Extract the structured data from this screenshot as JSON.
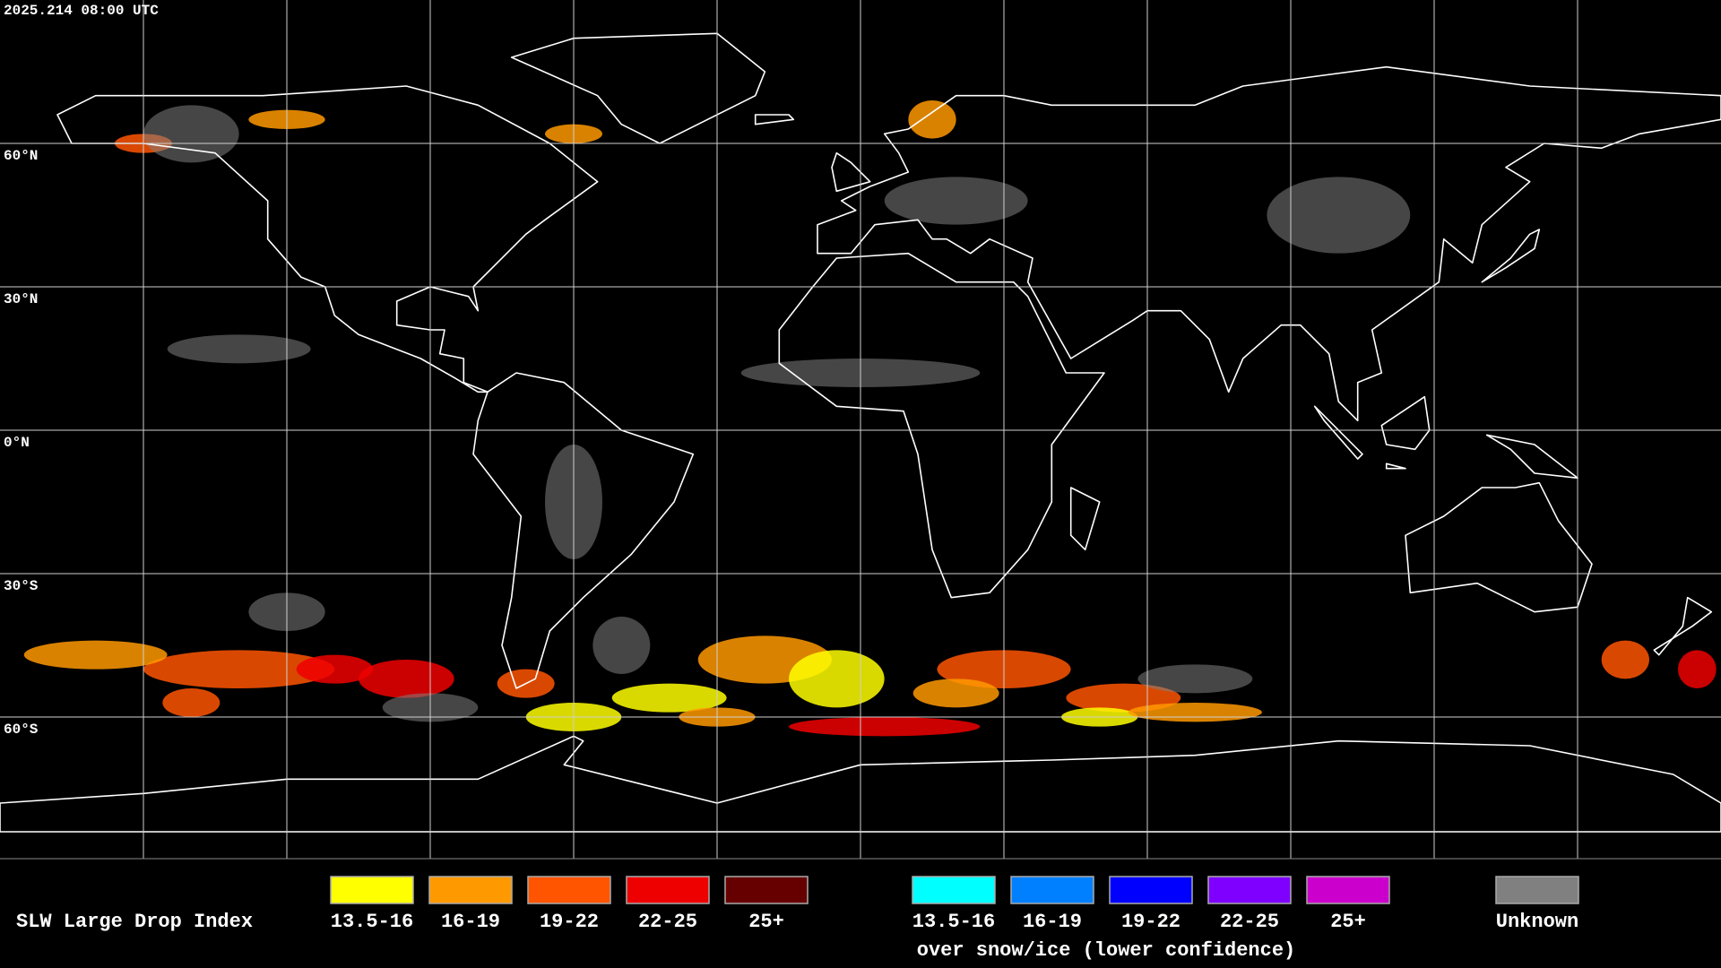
{
  "timestamp": "2025.214 08:00 UTC",
  "latitude_labels": [
    "60°N",
    "30°N",
    "0°N",
    "30°S",
    "60°S"
  ],
  "legend": {
    "title": "SLW Large Drop Index",
    "items": [
      {
        "label": "13.5-16",
        "color": "#ffff00"
      },
      {
        "label": "16-19",
        "color": "#ff9900"
      },
      {
        "label": "19-22",
        "color": "#ff5500"
      },
      {
        "label": "22-25",
        "color": "#ee0000"
      },
      {
        "label": "25+",
        "color": "#660000"
      }
    ],
    "snow_items": [
      {
        "label": "13.5-16",
        "color": "#00ffff"
      },
      {
        "label": "16-19",
        "color": "#0080ff"
      },
      {
        "label": "19-22",
        "color": "#0000ff"
      },
      {
        "label": "22-25",
        "color": "#7f00ff"
      },
      {
        "label": "25+",
        "color": "#cc00cc"
      }
    ],
    "snow_caption": "over snow/ice (lower confidence)",
    "unknown": {
      "label": "Unknown",
      "color": "#808080"
    }
  }
}
